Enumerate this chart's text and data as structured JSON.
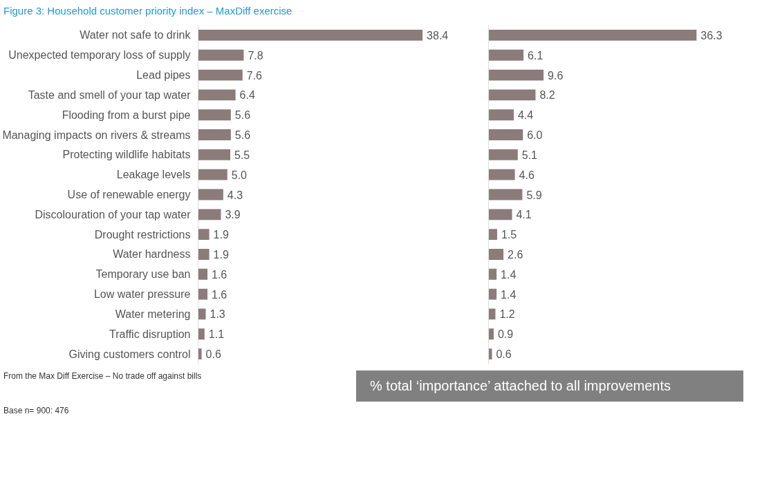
{
  "chart_data": [
    {
      "type": "bar",
      "orientation": "horizontal",
      "title": "Figure 3: Household customer priority index – MaxDiff exercise",
      "categories": [
        "Water not safe to drink",
        "Unexpected temporary loss of supply",
        "Lead pipes",
        "Taste and smell of your tap water",
        "Flooding from a burst pipe",
        "Managing impacts on rivers & streams",
        "Protecting wildlife habitats",
        "Leakage levels",
        "Use of renewable energy",
        "Discolouration of your tap water",
        "Drought restrictions",
        "Water hardness",
        "Temporary use ban",
        "Low water pressure",
        "Water metering",
        "Traffic disruption",
        "Giving customers control"
      ],
      "values": [
        38.4,
        7.8,
        7.6,
        6.4,
        5.6,
        5.6,
        5.5,
        5.0,
        4.3,
        3.9,
        1.9,
        1.9,
        1.6,
        1.6,
        1.3,
        1.1,
        0.6
      ],
      "value_labels": [
        "38.4",
        "7.8",
        "7.6",
        "6.4",
        "5.6",
        "5.6",
        "5.5",
        "5.0",
        "4.3",
        "3.9",
        "1.9",
        "1.9",
        "1.6",
        "1.6",
        "1.3",
        "1.1",
        "0.6"
      ],
      "color": "#8c7b7b",
      "tick_labels": "y",
      "grid": false,
      "annotations": [
        "From the Max Diff Exercise – No trade off against bills",
        "Base n= 900: 476"
      ]
    },
    {
      "type": "bar",
      "orientation": "horizontal",
      "categories": [
        "Water not safe to drink",
        "Unexpected temporary loss of supply",
        "Lead pipes",
        "Taste and smell of your tap water",
        "Flooding from a burst pipe",
        "Managing impacts on rivers & streams",
        "Protecting wildlife habitats",
        "Leakage levels",
        "Use of renewable energy",
        "Discolouration of your tap water",
        "Drought restrictions",
        "Water hardness",
        "Temporary use ban",
        "Low water pressure",
        "Water metering",
        "Traffic disruption",
        "Giving customers control"
      ],
      "values": [
        36.3,
        6.1,
        9.6,
        8.2,
        4.4,
        6.0,
        5.1,
        4.6,
        5.9,
        4.1,
        1.5,
        2.6,
        1.4,
        1.4,
        1.2,
        0.9,
        0.6
      ],
      "value_labels": [
        "36.3",
        "6.1",
        "9.6",
        "8.2",
        "4.4",
        "6.0",
        "5.1",
        "4.6",
        "5.9",
        "4.1",
        "1.5",
        "2.6",
        "1.4",
        "1.4",
        "1.2",
        "0.9",
        "0.6"
      ],
      "color": "#8c7b7b",
      "tick_labels": false,
      "grid": false,
      "annotations": [
        "% total ‘importance’ attached to all improvements"
      ]
    }
  ]
}
